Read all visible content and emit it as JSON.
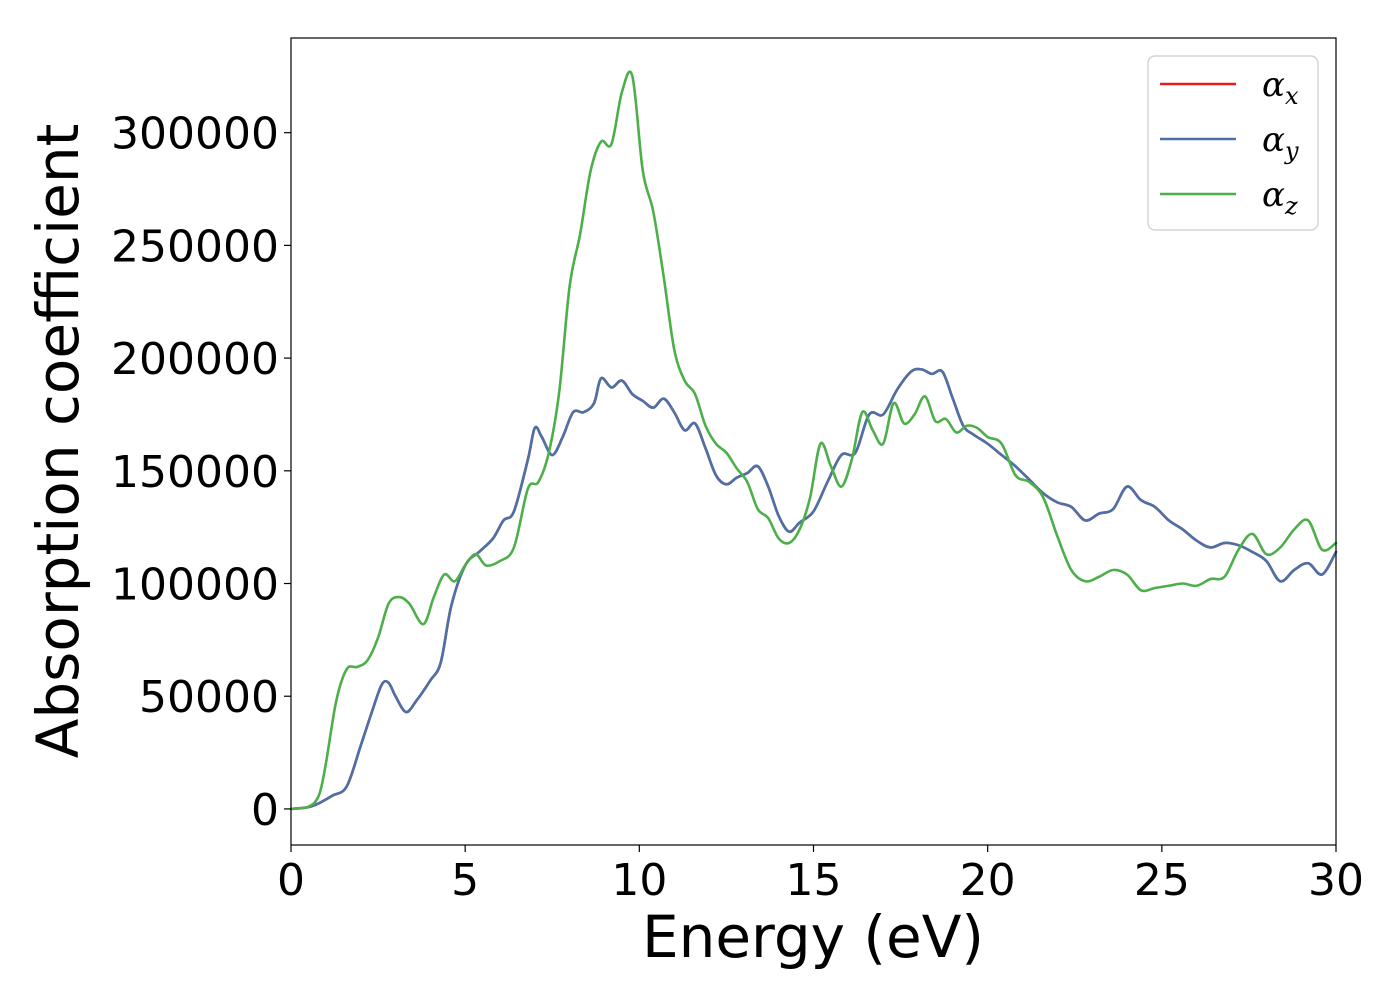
{
  "chart_data": {
    "type": "line",
    "title": "",
    "xlabel": "Energy (eV)",
    "ylabel": "Absorption coefficient",
    "xlim": [
      0,
      30
    ],
    "ylim": [
      -16000,
      342000
    ],
    "xticks": [
      0,
      5,
      10,
      15,
      20,
      25,
      30
    ],
    "yticks": [
      0,
      50000,
      100000,
      150000,
      200000,
      250000,
      300000
    ],
    "grid": false,
    "legend_position": "top-right",
    "series": [
      {
        "name": "αx",
        "symbol": "α",
        "subscript": "x",
        "color": "#e41a1c",
        "x": [
          0,
          0.5,
          0.8,
          1.2,
          1.6,
          2.0,
          2.3,
          2.6,
          2.8,
          3.0,
          3.3,
          3.6,
          4.0,
          4.3,
          4.6,
          5.0,
          5.4,
          5.8,
          6.1,
          6.4,
          6.8,
          7.0,
          7.2,
          7.5,
          7.8,
          8.1,
          8.4,
          8.7,
          8.9,
          9.2,
          9.5,
          9.8,
          10.1,
          10.4,
          10.7,
          11.0,
          11.3,
          11.6,
          11.9,
          12.2,
          12.5,
          12.8,
          13.1,
          13.4,
          13.7,
          14.0,
          14.3,
          14.6,
          15.0,
          15.4,
          15.8,
          16.2,
          16.6,
          17.0,
          17.4,
          17.8,
          18.1,
          18.4,
          18.7,
          19.0,
          19.3,
          19.6,
          20.0,
          20.4,
          20.8,
          21.2,
          21.6,
          22.0,
          22.4,
          22.8,
          23.2,
          23.6,
          24.0,
          24.4,
          24.8,
          25.2,
          25.6,
          26.0,
          26.4,
          26.8,
          27.2,
          27.6,
          28.0,
          28.4,
          28.8,
          29.2,
          29.6,
          30.0
        ],
        "values": [
          0,
          800,
          2500,
          6000,
          10000,
          28000,
          42000,
          55000,
          56000,
          50000,
          43000,
          48000,
          57000,
          65000,
          90000,
          108000,
          114000,
          120000,
          128000,
          132000,
          155000,
          169000,
          165000,
          157000,
          165000,
          176000,
          176000,
          180000,
          191000,
          187000,
          190000,
          184000,
          181000,
          178000,
          182000,
          176000,
          168000,
          171000,
          160000,
          148000,
          144000,
          147000,
          149000,
          152000,
          143000,
          130000,
          123000,
          127000,
          132000,
          145000,
          157000,
          158000,
          175000,
          175000,
          186000,
          194000,
          195000,
          193000,
          194000,
          182000,
          170000,
          166000,
          162000,
          157000,
          152000,
          146000,
          140000,
          136000,
          134000,
          128000,
          131000,
          133000,
          143000,
          137000,
          134000,
          128000,
          124000,
          119000,
          116000,
          118000,
          117000,
          114000,
          110000,
          101000,
          106000,
          109000,
          104000,
          114000
        ]
      },
      {
        "name": "αy",
        "symbol": "α",
        "subscript": "y",
        "color": "#4a72a8",
        "x": [
          0,
          0.5,
          0.8,
          1.2,
          1.6,
          2.0,
          2.3,
          2.6,
          2.8,
          3.0,
          3.3,
          3.6,
          4.0,
          4.3,
          4.6,
          5.0,
          5.4,
          5.8,
          6.1,
          6.4,
          6.8,
          7.0,
          7.2,
          7.5,
          7.8,
          8.1,
          8.4,
          8.7,
          8.9,
          9.2,
          9.5,
          9.8,
          10.1,
          10.4,
          10.7,
          11.0,
          11.3,
          11.6,
          11.9,
          12.2,
          12.5,
          12.8,
          13.1,
          13.4,
          13.7,
          14.0,
          14.3,
          14.6,
          15.0,
          15.4,
          15.8,
          16.2,
          16.6,
          17.0,
          17.4,
          17.8,
          18.1,
          18.4,
          18.7,
          19.0,
          19.3,
          19.6,
          20.0,
          20.4,
          20.8,
          21.2,
          21.6,
          22.0,
          22.4,
          22.8,
          23.2,
          23.6,
          24.0,
          24.4,
          24.8,
          25.2,
          25.6,
          26.0,
          26.4,
          26.8,
          27.2,
          27.6,
          28.0,
          28.4,
          28.8,
          29.2,
          29.6,
          30.0
        ],
        "values": [
          0,
          800,
          2500,
          6000,
          10000,
          28000,
          42000,
          55000,
          56000,
          50000,
          43000,
          48000,
          57000,
          65000,
          90000,
          108000,
          114000,
          120000,
          128000,
          132000,
          155000,
          169000,
          165000,
          157000,
          165000,
          176000,
          176000,
          180000,
          191000,
          187000,
          190000,
          184000,
          181000,
          178000,
          182000,
          176000,
          168000,
          171000,
          160000,
          148000,
          144000,
          147000,
          149000,
          152000,
          143000,
          130000,
          123000,
          127000,
          132000,
          145000,
          157000,
          158000,
          175000,
          175000,
          186000,
          194000,
          195000,
          193000,
          194000,
          182000,
          170000,
          166000,
          162000,
          157000,
          152000,
          146000,
          140000,
          136000,
          134000,
          128000,
          131000,
          133000,
          143000,
          137000,
          134000,
          128000,
          124000,
          119000,
          116000,
          118000,
          117000,
          114000,
          110000,
          101000,
          106000,
          109000,
          104000,
          114000
        ]
      },
      {
        "name": "αz",
        "symbol": "α",
        "subscript": "z",
        "color": "#4daf4a",
        "x": [
          0,
          0.5,
          0.8,
          1.0,
          1.3,
          1.6,
          1.9,
          2.2,
          2.5,
          2.8,
          3.1,
          3.4,
          3.8,
          4.1,
          4.4,
          4.7,
          5.0,
          5.3,
          5.6,
          6.0,
          6.4,
          6.8,
          7.1,
          7.4,
          7.7,
          8.0,
          8.3,
          8.6,
          8.9,
          9.2,
          9.5,
          9.8,
          10.1,
          10.4,
          10.7,
          11.0,
          11.3,
          11.6,
          11.9,
          12.2,
          12.5,
          12.8,
          13.1,
          13.4,
          13.7,
          14.0,
          14.3,
          14.6,
          14.9,
          15.2,
          15.5,
          15.8,
          16.1,
          16.4,
          16.7,
          17.0,
          17.3,
          17.6,
          17.9,
          18.2,
          18.5,
          18.8,
          19.1,
          19.4,
          19.7,
          20.0,
          20.4,
          20.8,
          21.2,
          21.6,
          22.0,
          22.4,
          22.8,
          23.2,
          23.6,
          24.0,
          24.4,
          24.8,
          25.2,
          25.6,
          26.0,
          26.4,
          26.8,
          27.2,
          27.6,
          28.0,
          28.4,
          28.8,
          29.2,
          29.6,
          30.0
        ],
        "values": [
          0,
          1000,
          6000,
          20000,
          48000,
          62000,
          63000,
          66000,
          76000,
          91000,
          94000,
          91000,
          82000,
          94000,
          104000,
          101000,
          108000,
          113000,
          108000,
          110000,
          116000,
          142000,
          145000,
          158000,
          185000,
          232000,
          255000,
          283000,
          296000,
          295000,
          318000,
          325000,
          283000,
          265000,
          236000,
          204000,
          190000,
          184000,
          170000,
          162000,
          158000,
          151000,
          145000,
          133000,
          129000,
          120000,
          118000,
          124000,
          138000,
          162000,
          152000,
          143000,
          155000,
          176000,
          168000,
          162000,
          180000,
          171000,
          175000,
          183000,
          172000,
          173000,
          167000,
          170000,
          169000,
          165000,
          162000,
          148000,
          145000,
          138000,
          121000,
          106000,
          101000,
          103000,
          106000,
          104000,
          97000,
          98000,
          99000,
          100000,
          99000,
          102000,
          103000,
          115000,
          122000,
          113000,
          116000,
          124000,
          128000,
          115000,
          118000
        ]
      }
    ]
  }
}
